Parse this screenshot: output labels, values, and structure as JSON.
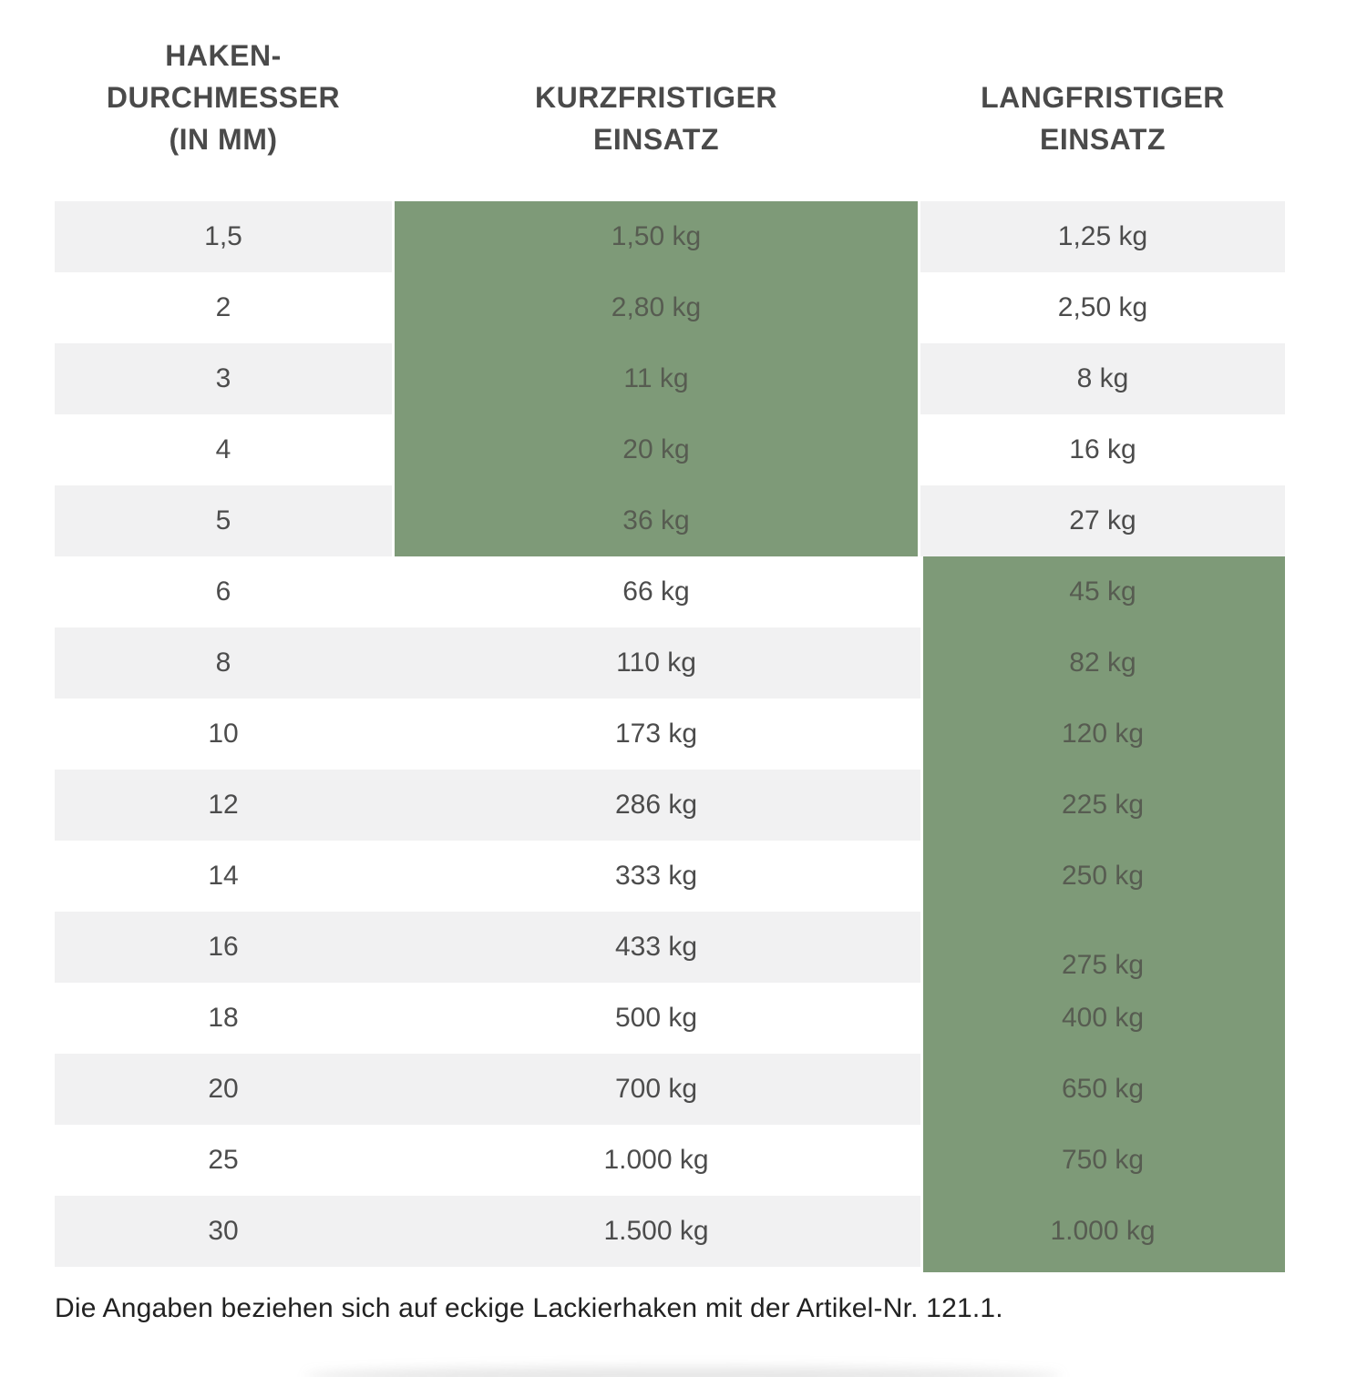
{
  "table": {
    "headers": [
      {
        "lines": [
          "HAKEN-",
          "DURCHMESSER",
          "(IN MM)"
        ]
      },
      {
        "lines": [
          "KURZFRISTIGER",
          "EINSATZ"
        ]
      },
      {
        "lines": [
          "LANGFRISTIGER",
          "EINSATZ"
        ]
      }
    ],
    "rows": [
      {
        "diameter": "1,5",
        "short": "1,50 kg",
        "long": "1,25 kg"
      },
      {
        "diameter": "2",
        "short": "2,80 kg",
        "long": "2,50 kg"
      },
      {
        "diameter": "3",
        "short": "11 kg",
        "long": "8 kg"
      },
      {
        "diameter": "4",
        "short": "20 kg",
        "long": "16 kg"
      },
      {
        "diameter": "5",
        "short": "36 kg",
        "long": "27 kg"
      },
      {
        "diameter": "6",
        "short": "66 kg",
        "long": "45 kg"
      },
      {
        "diameter": "8",
        "short": "110 kg",
        "long": "82 kg"
      },
      {
        "diameter": "10",
        "short": "173 kg",
        "long": "120 kg"
      },
      {
        "diameter": "12",
        "short": "286 kg",
        "long": "225 kg"
      },
      {
        "diameter": "14",
        "short": "333 kg",
        "long": "250 kg"
      },
      {
        "diameter": "16",
        "short": "433 kg",
        "long": "275 kg"
      },
      {
        "diameter": "18",
        "short": "500 kg",
        "long": "400 kg"
      },
      {
        "diameter": "20",
        "short": "700 kg",
        "long": "650 kg"
      },
      {
        "diameter": "25",
        "short": "1.000 kg",
        "long": "750 kg"
      },
      {
        "diameter": "30",
        "short": "1.500 kg",
        "long": "1.000 kg"
      }
    ],
    "highlight": {
      "short_term_row_range": [
        0,
        4
      ],
      "long_term_row_range": [
        5,
        14
      ]
    }
  },
  "footnote": "Die Angaben beziehen sich auf eckige Lackierhaken mit der Artikel-Nr. 121.1.",
  "colors": {
    "highlight_green": "#7e9a78",
    "stripe_gray": "#f1f1f2",
    "header_text": "#4a4a4a",
    "cell_text": "#4c4c4c",
    "footnote_text": "#222222"
  }
}
